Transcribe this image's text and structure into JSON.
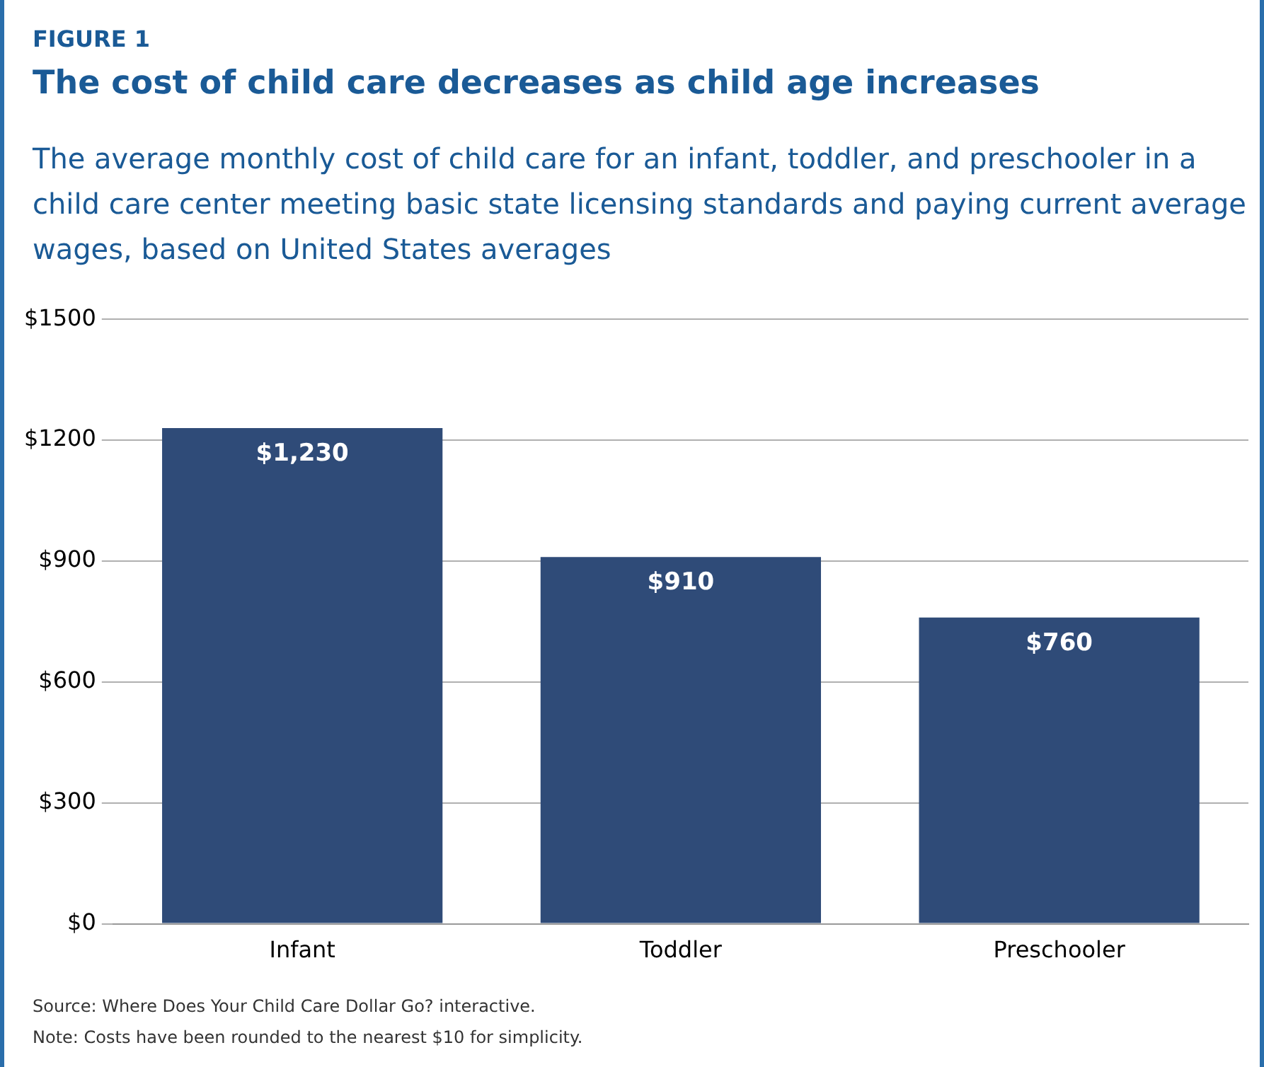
{
  "chart_data": {
    "type": "bar",
    "title": "The cost of child care decreases as child age increases",
    "subtitle": "The average monthly cost of child care for an infant, toddler, and preschooler in a child care center meeting basic state licensing standards and paying current average wages, based on United States averages",
    "annotations": [
      "FIGURE 1",
      "Source: Where Does Your Child Care Dollar Go? interactive.",
      "Note: Costs have been rounded to the nearest $10 for simplicity."
    ],
    "categories": [
      "Infant",
      "Toddler",
      "Preschooler"
    ],
    "values": [
      1230,
      910,
      760
    ],
    "value_labels": [
      "$1,230",
      "$910",
      "$760"
    ],
    "color": "#2f4b78",
    "ylim": [
      0,
      1500
    ],
    "yticks": [
      {
        "value": 0,
        "label": "$0"
      },
      {
        "value": 300,
        "label": "$300"
      },
      {
        "value": 600,
        "label": "$600"
      },
      {
        "value": 900,
        "label": "$900"
      },
      {
        "value": 1200,
        "label": "$1200"
      },
      {
        "value": 1500,
        "label": "$1500"
      }
    ],
    "grid": "y",
    "legend": false
  }
}
